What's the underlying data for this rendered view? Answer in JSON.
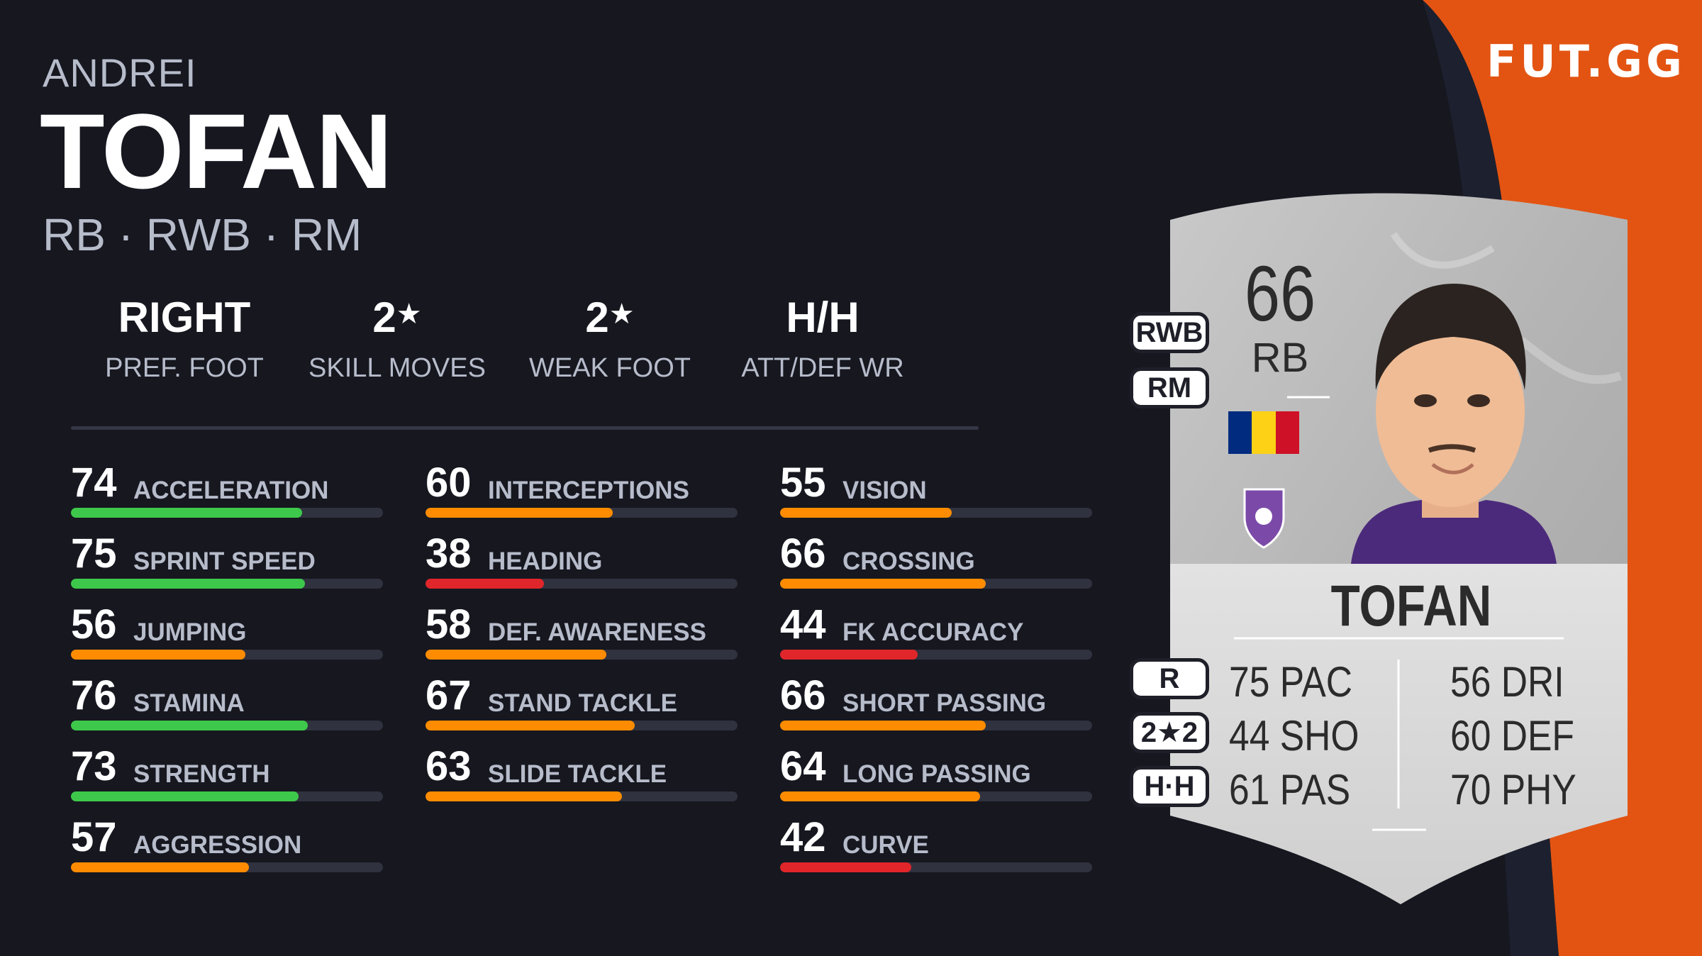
{
  "brand": "FUT.GG",
  "player": {
    "first_name": "ANDREI",
    "last_name": "TOFAN",
    "positions": "RB · RWB · RM"
  },
  "info": [
    {
      "value": "RIGHT",
      "star": "",
      "label": "PREF. FOOT"
    },
    {
      "value": "2",
      "star": "★",
      "label": "SKILL MOVES"
    },
    {
      "value": "2",
      "star": "★",
      "label": "WEAK FOOT"
    },
    {
      "value": "H/H",
      "star": "",
      "label": "ATT/DEF WR"
    }
  ],
  "colors": {
    "background": "#16171f",
    "accent_orange": "#e35412",
    "bar_green": "#3ec84b",
    "bar_orange": "#ff8c00",
    "bar_red": "#e0262a",
    "bar_track": "#30323f"
  },
  "stats": {
    "column1": [
      {
        "value": "74",
        "name": "ACCELERATION",
        "color": "green"
      },
      {
        "value": "75",
        "name": "SPRINT SPEED",
        "color": "green"
      },
      {
        "value": "56",
        "name": "JUMPING",
        "color": "orange"
      },
      {
        "value": "76",
        "name": "STAMINA",
        "color": "green"
      },
      {
        "value": "73",
        "name": "STRENGTH",
        "color": "green"
      },
      {
        "value": "57",
        "name": "AGGRESSION",
        "color": "orange"
      }
    ],
    "column2": [
      {
        "value": "60",
        "name": "INTERCEPTIONS",
        "color": "orange"
      },
      {
        "value": "38",
        "name": "HEADING",
        "color": "red"
      },
      {
        "value": "58",
        "name": "DEF. AWARENESS",
        "color": "orange"
      },
      {
        "value": "67",
        "name": "STAND TACKLE",
        "color": "orange"
      },
      {
        "value": "63",
        "name": "SLIDE TACKLE",
        "color": "orange"
      }
    ],
    "column3": [
      {
        "value": "55",
        "name": "VISION",
        "color": "orange"
      },
      {
        "value": "66",
        "name": "CROSSING",
        "color": "orange"
      },
      {
        "value": "44",
        "name": "FK ACCURACY",
        "color": "red"
      },
      {
        "value": "66",
        "name": "SHORT PASSING",
        "color": "orange"
      },
      {
        "value": "64",
        "name": "LONG PASSING",
        "color": "orange"
      },
      {
        "value": "42",
        "name": "CURVE",
        "color": "red"
      }
    ]
  },
  "card": {
    "rating": "66",
    "position": "RB",
    "name": "TOFAN",
    "alt_positions": [
      "RWB",
      "RM"
    ],
    "chips": [
      "R",
      "2★2",
      "H·H"
    ],
    "nation_flag_colors": [
      "#002b7f",
      "#fcd116",
      "#ce1126"
    ],
    "club_crest": "fc-arges-crest-icon",
    "face_stats_left": [
      {
        "value": "75",
        "label": "PAC"
      },
      {
        "value": "44",
        "label": "SHO"
      },
      {
        "value": "61",
        "label": "PAS"
      }
    ],
    "face_stats_right": [
      {
        "value": "56",
        "label": "DRI"
      },
      {
        "value": "60",
        "label": "DEF"
      },
      {
        "value": "70",
        "label": "PHY"
      }
    ]
  }
}
